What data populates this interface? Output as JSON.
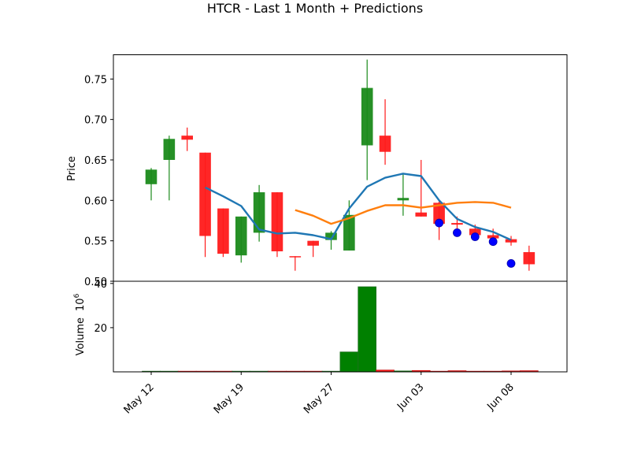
{
  "chart_data": {
    "type": "candlestick",
    "title": "HTCR - Last 1 Month + Predictions",
    "x_tick_labels": [
      "May 12",
      "May 19",
      "May 27",
      "Jun 03",
      "Jun 08"
    ],
    "price_panel": {
      "ylabel": "Price",
      "ylim": [
        0.5,
        0.78
      ],
      "y_ticks": [
        "0.50",
        "0.55",
        "0.60",
        "0.65",
        "0.70",
        "0.75"
      ],
      "candles": [
        {
          "open": 0.62,
          "high": 0.64,
          "low": 0.6,
          "close": 0.638,
          "up": true
        },
        {
          "open": 0.65,
          "high": 0.68,
          "low": 0.6,
          "close": 0.676,
          "up": true
        },
        {
          "open": 0.68,
          "high": 0.69,
          "low": 0.661,
          "close": 0.675,
          "up": false
        },
        {
          "open": 0.659,
          "high": 0.659,
          "low": 0.53,
          "close": 0.556,
          "up": false
        },
        {
          "open": 0.59,
          "high": 0.59,
          "low": 0.53,
          "close": 0.534,
          "up": false
        },
        {
          "open": 0.532,
          "high": 0.58,
          "low": 0.523,
          "close": 0.58,
          "up": true
        },
        {
          "open": 0.56,
          "high": 0.619,
          "low": 0.549,
          "close": 0.61,
          "up": true
        },
        {
          "open": 0.61,
          "high": 0.61,
          "low": 0.53,
          "close": 0.537,
          "up": false
        },
        {
          "open": 0.531,
          "high": 0.531,
          "low": 0.513,
          "close": 0.53,
          "up": false
        },
        {
          "open": 0.55,
          "high": 0.55,
          "low": 0.53,
          "close": 0.544,
          "up": false
        },
        {
          "open": 0.551,
          "high": 0.562,
          "low": 0.539,
          "close": 0.56,
          "up": true
        },
        {
          "open": 0.538,
          "high": 0.6,
          "low": 0.538,
          "close": 0.582,
          "up": true
        },
        {
          "open": 0.668,
          "high": 0.774,
          "low": 0.625,
          "close": 0.739,
          "up": true
        },
        {
          "open": 0.68,
          "high": 0.725,
          "low": 0.644,
          "close": 0.66,
          "up": false
        },
        {
          "open": 0.6,
          "high": 0.634,
          "low": 0.581,
          "close": 0.603,
          "up": true
        },
        {
          "open": 0.585,
          "high": 0.65,
          "low": 0.58,
          "close": 0.58,
          "up": false
        },
        {
          "open": 0.597,
          "high": 0.6,
          "low": 0.551,
          "close": 0.571,
          "up": false
        },
        {
          "open": 0.572,
          "high": 0.58,
          "low": 0.561,
          "close": 0.57,
          "up": false
        },
        {
          "open": 0.565,
          "high": 0.57,
          "low": 0.553,
          "close": 0.557,
          "up": false
        },
        {
          "open": 0.557,
          "high": 0.565,
          "low": 0.545,
          "close": 0.553,
          "up": false
        },
        {
          "open": 0.552,
          "high": 0.556,
          "low": 0.544,
          "close": 0.548,
          "up": false
        },
        {
          "open": 0.536,
          "high": 0.544,
          "low": 0.513,
          "close": 0.521,
          "up": false
        }
      ],
      "line_blue": [
        null,
        null,
        null,
        0.616,
        0.605,
        0.593,
        0.564,
        0.559,
        0.56,
        0.557,
        0.552,
        0.59,
        0.617,
        0.628,
        0.633,
        0.63,
        0.6,
        0.577,
        0.567,
        0.561,
        0.551
      ],
      "line_orange": [
        null,
        null,
        null,
        null,
        null,
        null,
        null,
        null,
        0.588,
        0.581,
        0.571,
        0.578,
        0.587,
        0.594,
        0.594,
        0.591,
        0.594,
        0.597,
        0.598,
        0.597,
        0.591
      ],
      "prediction_points": [
        {
          "index": 16,
          "value": 0.572
        },
        {
          "index": 17,
          "value": 0.56
        },
        {
          "index": 18,
          "value": 0.555
        },
        {
          "index": 19,
          "value": 0.549
        },
        {
          "index": 20,
          "value": 0.522
        }
      ]
    },
    "volume_panel": {
      "ylabel": "Volume",
      "scale_label": "10",
      "scale_exponent": "6",
      "ylim": [
        0,
        41
      ],
      "y_ticks": [
        "20",
        "40"
      ],
      "values": [
        0.1,
        0.1,
        0.1,
        0.1,
        0.1,
        0.1,
        0.1,
        0.1,
        0.1,
        0.1,
        0.1,
        9.0,
        38.5,
        0.8,
        0.4,
        0.6,
        0.2,
        0.5,
        0.2,
        0.2,
        0.4,
        0.5
      ],
      "up": [
        true,
        true,
        false,
        false,
        false,
        true,
        true,
        false,
        false,
        false,
        true,
        true,
        true,
        false,
        true,
        false,
        false,
        false,
        false,
        false,
        false,
        false
      ]
    },
    "colors": {
      "up": "#1a8a1a",
      "down": "#ff1a1a",
      "volume_up": "#008000",
      "line_blue": "#1f77b4",
      "line_orange": "#ff7f0e",
      "marker": "#0000ff"
    }
  }
}
